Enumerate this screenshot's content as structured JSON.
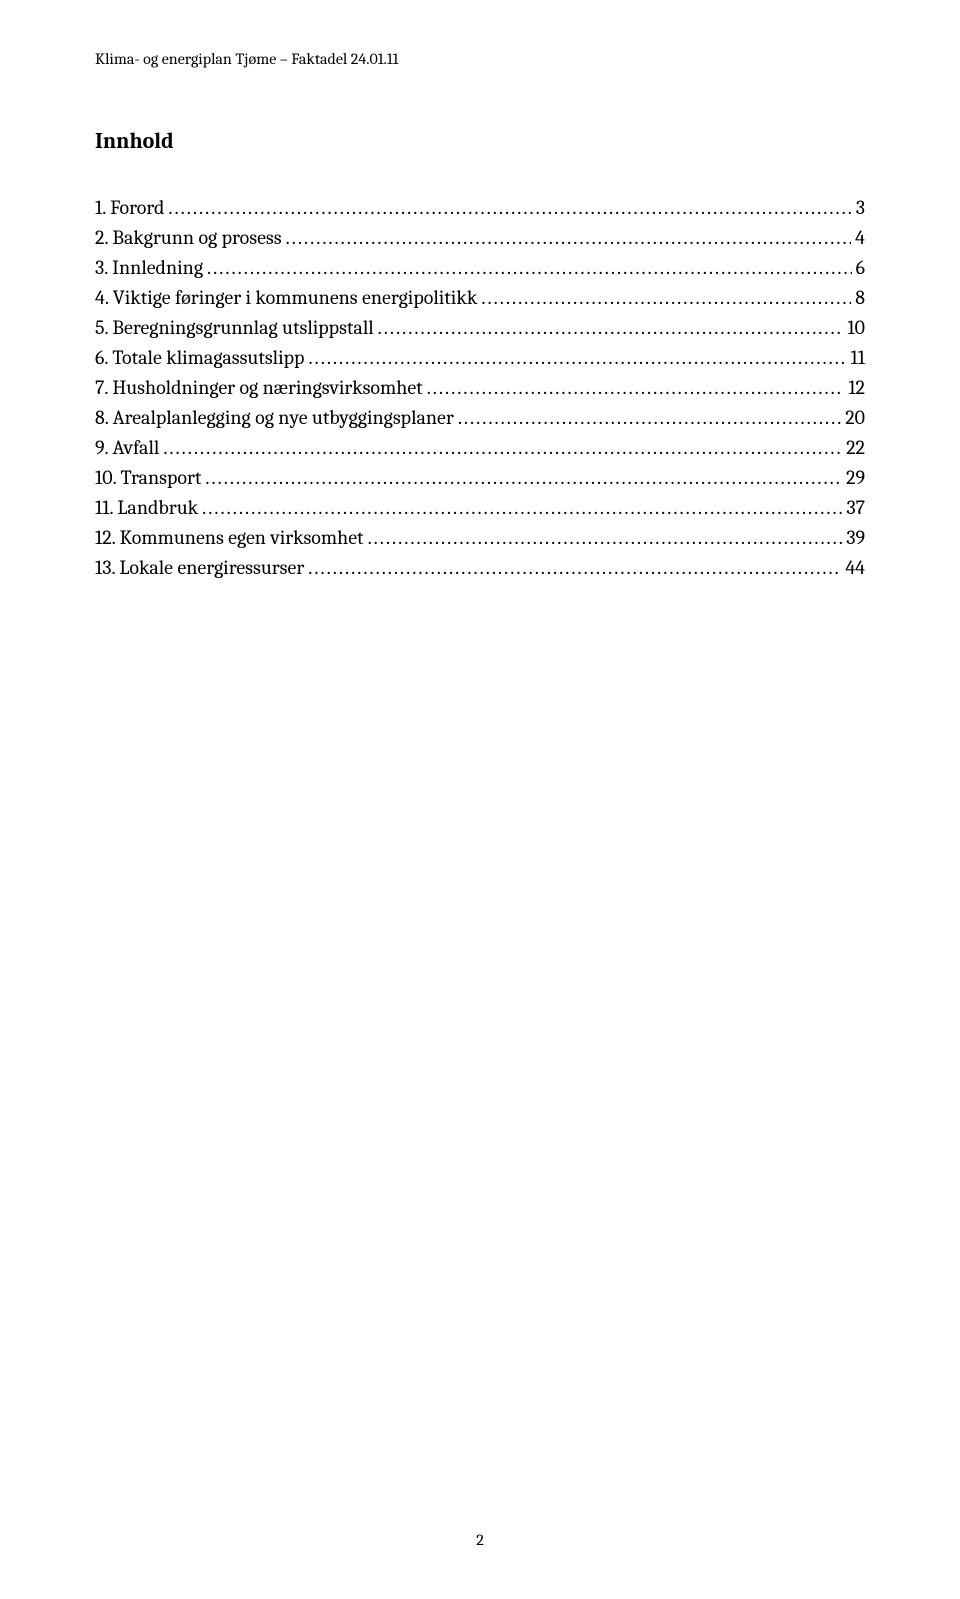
{
  "header_text": "Klima- og energiplan Tjøme – Faktadel 24.01.11",
  "title": "Innhold",
  "toc_entries": [
    {
      "label": "1.  Forord",
      "page": "3"
    },
    {
      "label": "2.  Bakgrunn og prosess",
      "page": "4"
    },
    {
      "label": "3.  Innledning",
      "page": "6"
    },
    {
      "label": "4.  Viktige føringer i kommunens energipolitikk",
      "page": "8"
    },
    {
      "label": "5.  Beregningsgrunnlag utslippstall",
      "page": "10"
    },
    {
      "label": "6.  Totale klimagassutslipp",
      "page": "11"
    },
    {
      "label": "7.  Husholdninger og næringsvirksomhet",
      "page": "12"
    },
    {
      "label": "8.  Arealplanlegging og nye utbyggingsplaner",
      "page": "20"
    },
    {
      "label": "9.  Avfall",
      "page": "22"
    },
    {
      "label": "10. Transport",
      "page": "29"
    },
    {
      "label": "11. Landbruk",
      "page": "37"
    },
    {
      "label": "12. Kommunens egen virksomhet",
      "page": "39"
    },
    {
      "label": "13. Lokale energiressurser",
      "page": "44"
    }
  ],
  "page_number": "2",
  "styling": {
    "background_color": "#ffffff",
    "text_color": "#000000",
    "header_fontsize": 16,
    "title_fontsize": 22,
    "toc_fontsize": 20,
    "page_number_fontsize": 16,
    "font_family": "Cambria"
  }
}
